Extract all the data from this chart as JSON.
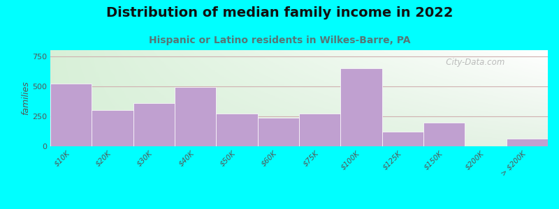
{
  "title": "Distribution of median family income in 2022",
  "subtitle": "Hispanic or Latino residents in Wilkes-Barre, PA",
  "categories": [
    "$10K",
    "$20K",
    "$30K",
    "$40K",
    "$50K",
    "$60K",
    "$75K",
    "$100K",
    "$125K",
    "$150K",
    "$200K",
    "> $200K"
  ],
  "values": [
    520,
    300,
    360,
    490,
    270,
    240,
    270,
    650,
    120,
    200,
    0,
    65
  ],
  "bar_color": "#c0a0d0",
  "background_outer": "#00ffff",
  "background_top_left": "#d8f0d8",
  "background_top_right": "#ffffff",
  "background_bottom_left": "#d8f0d8",
  "background_bottom_right": "#d8f0d8",
  "ylabel": "families",
  "ylim": [
    0,
    800
  ],
  "yticks": [
    0,
    250,
    500,
    750
  ],
  "title_fontsize": 14,
  "subtitle_fontsize": 10,
  "watermark": "   City-Data.com",
  "grid_color": "#d0b0b0"
}
